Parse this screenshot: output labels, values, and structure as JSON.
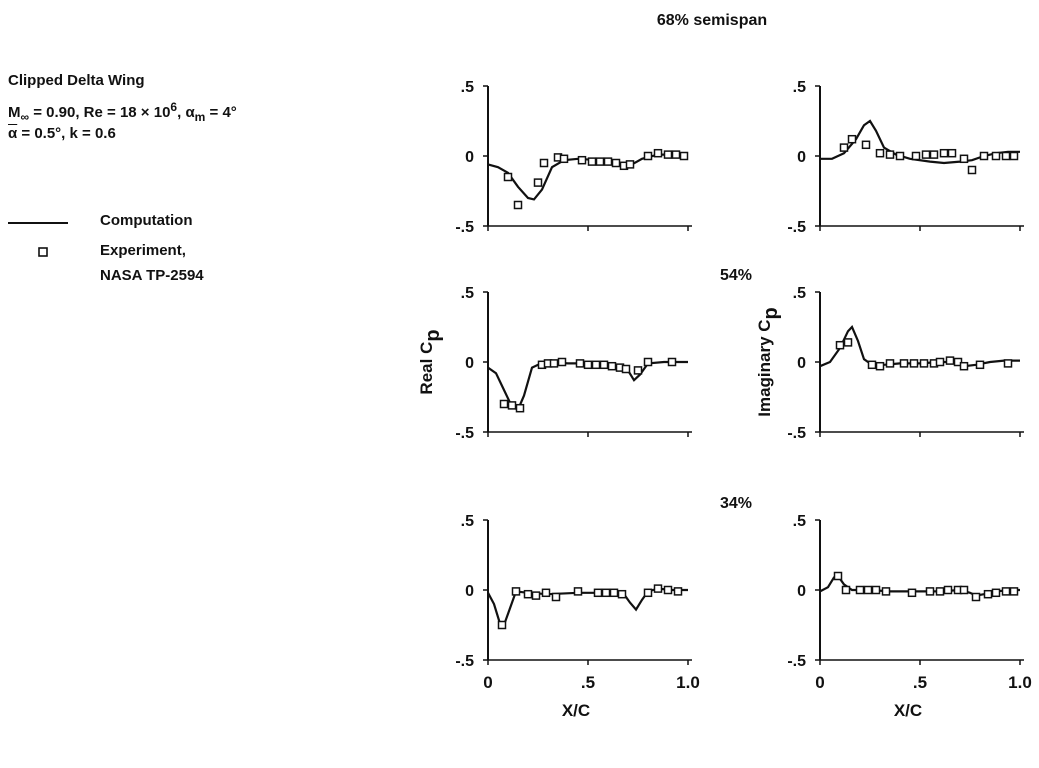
{
  "legend": {
    "title": "Clipped Delta Wing",
    "mach_lhs": "M",
    "mach_sub": "∞",
    "mach_rhs": " = 0.90, Re = 18 × 10",
    "re_exp": "6",
    "alpha_m_pre": ", α",
    "alpha_m_sub": "m",
    "alpha_m_rhs": " = 4°",
    "alpha_bar": "α",
    "line3_rhs": " = 0.5°, k = 0.6",
    "computation_label": "Computation",
    "experiment_label": "Experiment,",
    "experiment_source": "NASA TP-2594"
  },
  "colors": {
    "ink": "#111111"
  },
  "chart_data": {
    "type": "line",
    "xlabel": "X/C",
    "ylabel_left": "Real C",
    "ylabel_left_sub": "p",
    "ylabel_right": "Imaginary C",
    "ylabel_right_sub": "p",
    "xlim": [
      0,
      1.0
    ],
    "ylim": [
      -0.5,
      0.5
    ],
    "xticks": [
      "0",
      ".5",
      "1.0"
    ],
    "yticks": [
      ".5",
      "0",
      "-.5"
    ],
    "series_names": [
      "Computation",
      "Experiment, NASA TP-2594"
    ],
    "rows": [
      {
        "label": "68% semispan",
        "real": {
          "computation": [
            [
              0,
              -0.06
            ],
            [
              0.05,
              -0.08
            ],
            [
              0.1,
              -0.12
            ],
            [
              0.15,
              -0.22
            ],
            [
              0.2,
              -0.3
            ],
            [
              0.23,
              -0.31
            ],
            [
              0.27,
              -0.24
            ],
            [
              0.32,
              -0.08
            ],
            [
              0.38,
              -0.03
            ],
            [
              0.45,
              -0.02
            ],
            [
              0.55,
              -0.03
            ],
            [
              0.62,
              -0.03
            ],
            [
              0.66,
              -0.06
            ],
            [
              0.69,
              -0.09
            ],
            [
              0.72,
              -0.06
            ],
            [
              0.77,
              -0.02
            ],
            [
              0.85,
              0.01
            ],
            [
              0.92,
              0.01
            ],
            [
              0.98,
              0.0
            ]
          ],
          "experiment": [
            [
              0.1,
              -0.15
            ],
            [
              0.15,
              -0.35
            ],
            [
              0.25,
              -0.19
            ],
            [
              0.28,
              -0.05
            ],
            [
              0.35,
              -0.01
            ],
            [
              0.38,
              -0.02
            ],
            [
              0.47,
              -0.03
            ],
            [
              0.52,
              -0.04
            ],
            [
              0.56,
              -0.04
            ],
            [
              0.6,
              -0.04
            ],
            [
              0.64,
              -0.05
            ],
            [
              0.68,
              -0.07
            ],
            [
              0.71,
              -0.06
            ],
            [
              0.8,
              0.0
            ],
            [
              0.85,
              0.02
            ],
            [
              0.9,
              0.01
            ],
            [
              0.94,
              0.01
            ],
            [
              0.98,
              0.0
            ]
          ]
        },
        "imag": {
          "computation": [
            [
              0,
              -0.02
            ],
            [
              0.06,
              -0.02
            ],
            [
              0.12,
              0.02
            ],
            [
              0.18,
              0.12
            ],
            [
              0.22,
              0.22
            ],
            [
              0.25,
              0.25
            ],
            [
              0.28,
              0.18
            ],
            [
              0.32,
              0.06
            ],
            [
              0.38,
              0.01
            ],
            [
              0.45,
              -0.02
            ],
            [
              0.55,
              -0.04
            ],
            [
              0.62,
              -0.05
            ],
            [
              0.7,
              -0.04
            ],
            [
              0.76,
              -0.03
            ],
            [
              0.82,
              0.0
            ],
            [
              0.88,
              0.02
            ],
            [
              0.94,
              0.03
            ],
            [
              1.0,
              0.03
            ]
          ],
          "experiment": [
            [
              0.12,
              0.06
            ],
            [
              0.16,
              0.12
            ],
            [
              0.23,
              0.08
            ],
            [
              0.3,
              0.02
            ],
            [
              0.35,
              0.01
            ],
            [
              0.4,
              0.0
            ],
            [
              0.48,
              0.0
            ],
            [
              0.53,
              0.01
            ],
            [
              0.57,
              0.01
            ],
            [
              0.62,
              0.02
            ],
            [
              0.66,
              0.02
            ],
            [
              0.72,
              -0.02
            ],
            [
              0.76,
              -0.1
            ],
            [
              0.82,
              0.0
            ],
            [
              0.88,
              0.0
            ],
            [
              0.93,
              0.0
            ],
            [
              0.97,
              0.0
            ]
          ]
        }
      },
      {
        "label": "54%",
        "real": {
          "computation": [
            [
              0,
              -0.04
            ],
            [
              0.04,
              -0.08
            ],
            [
              0.08,
              -0.2
            ],
            [
              0.12,
              -0.32
            ],
            [
              0.15,
              -0.34
            ],
            [
              0.18,
              -0.24
            ],
            [
              0.22,
              -0.04
            ],
            [
              0.28,
              0.0
            ],
            [
              0.4,
              -0.01
            ],
            [
              0.55,
              -0.01
            ],
            [
              0.65,
              -0.02
            ],
            [
              0.7,
              -0.06
            ],
            [
              0.73,
              -0.13
            ],
            [
              0.76,
              -0.09
            ],
            [
              0.8,
              -0.01
            ],
            [
              0.88,
              0.0
            ],
            [
              0.95,
              0.0
            ],
            [
              1.0,
              0.0
            ]
          ],
          "experiment": [
            [
              0.08,
              -0.3
            ],
            [
              0.12,
              -0.31
            ],
            [
              0.16,
              -0.33
            ],
            [
              0.27,
              -0.02
            ],
            [
              0.3,
              -0.01
            ],
            [
              0.33,
              -0.01
            ],
            [
              0.37,
              0.0
            ],
            [
              0.46,
              -0.01
            ],
            [
              0.5,
              -0.02
            ],
            [
              0.54,
              -0.02
            ],
            [
              0.58,
              -0.02
            ],
            [
              0.62,
              -0.03
            ],
            [
              0.66,
              -0.04
            ],
            [
              0.69,
              -0.05
            ],
            [
              0.75,
              -0.06
            ],
            [
              0.8,
              0.0
            ],
            [
              0.92,
              0.0
            ]
          ]
        },
        "imag": {
          "computation": [
            [
              0,
              -0.03
            ],
            [
              0.05,
              0.0
            ],
            [
              0.1,
              0.1
            ],
            [
              0.14,
              0.22
            ],
            [
              0.16,
              0.25
            ],
            [
              0.19,
              0.15
            ],
            [
              0.22,
              0.02
            ],
            [
              0.26,
              -0.02
            ],
            [
              0.32,
              -0.02
            ],
            [
              0.4,
              -0.01
            ],
            [
              0.5,
              -0.01
            ],
            [
              0.6,
              0.0
            ],
            [
              0.66,
              0.0
            ],
            [
              0.72,
              -0.03
            ],
            [
              0.78,
              -0.02
            ],
            [
              0.85,
              0.0
            ],
            [
              0.92,
              0.01
            ],
            [
              1.0,
              0.01
            ]
          ],
          "experiment": [
            [
              0.1,
              0.12
            ],
            [
              0.14,
              0.14
            ],
            [
              0.26,
              -0.02
            ],
            [
              0.3,
              -0.03
            ],
            [
              0.35,
              -0.01
            ],
            [
              0.42,
              -0.01
            ],
            [
              0.47,
              -0.01
            ],
            [
              0.52,
              -0.01
            ],
            [
              0.57,
              -0.01
            ],
            [
              0.6,
              0.0
            ],
            [
              0.65,
              0.01
            ],
            [
              0.69,
              0.0
            ],
            [
              0.72,
              -0.03
            ],
            [
              0.8,
              -0.02
            ],
            [
              0.94,
              -0.01
            ]
          ]
        }
      },
      {
        "label": "34%",
        "real": {
          "computation": [
            [
              0,
              -0.02
            ],
            [
              0.03,
              -0.1
            ],
            [
              0.06,
              -0.24
            ],
            [
              0.08,
              -0.25
            ],
            [
              0.11,
              -0.13
            ],
            [
              0.14,
              -0.01
            ],
            [
              0.2,
              -0.02
            ],
            [
              0.3,
              -0.03
            ],
            [
              0.45,
              -0.02
            ],
            [
              0.6,
              -0.02
            ],
            [
              0.68,
              -0.03
            ],
            [
              0.71,
              -0.09
            ],
            [
              0.74,
              -0.14
            ],
            [
              0.77,
              -0.07
            ],
            [
              0.8,
              -0.01
            ],
            [
              0.85,
              0.01
            ],
            [
              0.92,
              0.0
            ],
            [
              1.0,
              0.0
            ]
          ],
          "experiment": [
            [
              0.07,
              -0.25
            ],
            [
              0.14,
              -0.01
            ],
            [
              0.2,
              -0.03
            ],
            [
              0.24,
              -0.04
            ],
            [
              0.29,
              -0.02
            ],
            [
              0.34,
              -0.05
            ],
            [
              0.45,
              -0.01
            ],
            [
              0.55,
              -0.02
            ],
            [
              0.59,
              -0.02
            ],
            [
              0.63,
              -0.02
            ],
            [
              0.67,
              -0.03
            ],
            [
              0.8,
              -0.02
            ],
            [
              0.85,
              0.01
            ],
            [
              0.9,
              0.0
            ],
            [
              0.95,
              -0.01
            ]
          ]
        },
        "imag": {
          "computation": [
            [
              0,
              -0.01
            ],
            [
              0.04,
              0.02
            ],
            [
              0.07,
              0.09
            ],
            [
              0.09,
              0.1
            ],
            [
              0.12,
              0.04
            ],
            [
              0.16,
              0.0
            ],
            [
              0.25,
              0.0
            ],
            [
              0.35,
              -0.01
            ],
            [
              0.5,
              -0.01
            ],
            [
              0.6,
              -0.01
            ],
            [
              0.7,
              0.0
            ],
            [
              0.75,
              -0.02
            ],
            [
              0.78,
              -0.04
            ],
            [
              0.82,
              -0.03
            ],
            [
              0.88,
              -0.01
            ],
            [
              0.95,
              0.0
            ],
            [
              1.0,
              0.0
            ]
          ],
          "experiment": [
            [
              0.09,
              0.1
            ],
            [
              0.13,
              0.0
            ],
            [
              0.2,
              0.0
            ],
            [
              0.24,
              0.0
            ],
            [
              0.28,
              0.0
            ],
            [
              0.33,
              -0.01
            ],
            [
              0.46,
              -0.02
            ],
            [
              0.55,
              -0.01
            ],
            [
              0.6,
              -0.01
            ],
            [
              0.64,
              0.0
            ],
            [
              0.69,
              0.0
            ],
            [
              0.72,
              0.0
            ],
            [
              0.78,
              -0.05
            ],
            [
              0.84,
              -0.03
            ],
            [
              0.88,
              -0.02
            ],
            [
              0.93,
              -0.01
            ],
            [
              0.97,
              -0.01
            ]
          ]
        }
      }
    ]
  }
}
